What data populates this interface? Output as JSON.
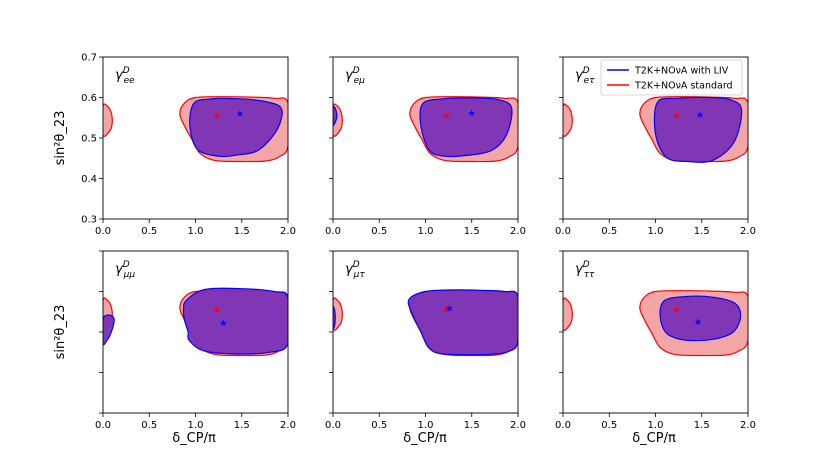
{
  "figure": {
    "xlabel": "δ_CP/π",
    "ylabel": "sin²θ_23",
    "legend_position": "top-right of upper-right panel"
  },
  "legend": [
    {
      "label": "T2K+NOνA with LIV",
      "color": "#0000ff"
    },
    {
      "label": "T2K+NOνA standard",
      "color": "#ff0000"
    }
  ],
  "chart_data": {
    "type": "area",
    "rows": 2,
    "cols": 3,
    "xlim": [
      0,
      2
    ],
    "ylim": [
      0.3,
      0.7
    ],
    "xticks": [
      "0.0",
      "0.5",
      "1.0",
      "1.5",
      "2.0"
    ],
    "yticks": [
      "0.3",
      "0.4",
      "0.5",
      "0.6",
      "0.7"
    ],
    "grid": false,
    "standard": {
      "color": "#ff0000",
      "fill": "#f4a6a6",
      "best_fit": [
        1.23,
        0.555
      ],
      "left_region": [
        [
          0.0,
          0.578
        ],
        [
          0.05,
          0.578
        ],
        [
          0.09,
          0.562
        ],
        [
          0.1,
          0.54
        ],
        [
          0.08,
          0.52
        ],
        [
          0.0,
          0.507
        ]
      ],
      "main_region": [
        [
          0.88,
          0.586
        ],
        [
          1.0,
          0.6
        ],
        [
          1.3,
          0.602
        ],
        [
          1.6,
          0.601
        ],
        [
          1.85,
          0.598
        ],
        [
          2.0,
          0.587
        ],
        [
          2.0,
          0.48
        ],
        [
          1.9,
          0.453
        ],
        [
          1.75,
          0.443
        ],
        [
          1.45,
          0.442
        ],
        [
          1.2,
          0.445
        ],
        [
          1.05,
          0.462
        ],
        [
          0.96,
          0.497
        ],
        [
          0.88,
          0.53
        ],
        [
          0.83,
          0.56
        ]
      ]
    },
    "panels": [
      {
        "label_base": "γ",
        "label_sub": "ee",
        "label_sup": "D",
        "show_yticks": true,
        "legend": false,
        "liv_best_fit": [
          1.48,
          0.56
        ],
        "liv_regions": [
          [
            [
              0.98,
              0.585
            ],
            [
              1.15,
              0.596
            ],
            [
              1.45,
              0.597
            ],
            [
              1.75,
              0.59
            ],
            [
              1.93,
              0.572
            ],
            [
              1.88,
              0.52
            ],
            [
              1.68,
              0.47
            ],
            [
              1.45,
              0.458
            ],
            [
              1.25,
              0.455
            ],
            [
              1.02,
              0.472
            ],
            [
              0.94,
              0.53
            ]
          ]
        ]
      },
      {
        "label_base": "γ",
        "label_sub": "eμ",
        "label_sup": "D",
        "show_yticks": false,
        "legend": false,
        "liv_best_fit": [
          1.5,
          0.561
        ],
        "liv_regions": [
          [
            [
              0.97,
              0.585
            ],
            [
              1.2,
              0.597
            ],
            [
              1.5,
              0.599
            ],
            [
              1.78,
              0.595
            ],
            [
              1.93,
              0.575
            ],
            [
              1.88,
              0.51
            ],
            [
              1.72,
              0.47
            ],
            [
              1.45,
              0.457
            ],
            [
              1.2,
              0.455
            ],
            [
              1.04,
              0.47
            ],
            [
              0.95,
              0.53
            ]
          ],
          [
            [
              0.0,
              0.575
            ],
            [
              0.03,
              0.57
            ],
            [
              0.04,
              0.55
            ],
            [
              0.0,
              0.532
            ]
          ]
        ]
      },
      {
        "label_base": "γ",
        "label_sub": "eτ",
        "label_sup": "D",
        "show_yticks": false,
        "legend": true,
        "liv_best_fit": [
          1.48,
          0.557
        ],
        "liv_regions": [
          [
            [
              1.02,
              0.588
            ],
            [
              1.25,
              0.598
            ],
            [
              1.55,
              0.6
            ],
            [
              1.8,
              0.595
            ],
            [
              1.93,
              0.57
            ],
            [
              1.85,
              0.49
            ],
            [
              1.62,
              0.445
            ],
            [
              1.35,
              0.442
            ],
            [
              1.12,
              0.452
            ],
            [
              1.0,
              0.51
            ]
          ]
        ]
      },
      {
        "label_base": "γ",
        "label_sub": "μμ",
        "label_sup": "D",
        "show_yticks": false,
        "legend": false,
        "liv_best_fit": [
          1.3,
          0.522
        ],
        "liv_regions": [
          [
            [
              0.9,
              0.578
            ],
            [
              1.1,
              0.605
            ],
            [
              1.5,
              0.607
            ],
            [
              1.85,
              0.6
            ],
            [
              2.0,
              0.584
            ],
            [
              2.0,
              0.472
            ],
            [
              1.8,
              0.45
            ],
            [
              1.4,
              0.446
            ],
            [
              1.08,
              0.454
            ],
            [
              0.93,
              0.48
            ],
            [
              0.92,
              0.5
            ],
            [
              0.88,
              0.53
            ],
            [
              0.87,
              0.555
            ]
          ],
          [
            [
              0.0,
              0.53
            ],
            [
              0.06,
              0.542
            ],
            [
              0.12,
              0.532
            ],
            [
              0.09,
              0.5
            ],
            [
              0.04,
              0.478
            ],
            [
              0.0,
              0.472
            ]
          ]
        ]
      },
      {
        "label_base": "γ",
        "label_sub": "μτ",
        "label_sup": "D",
        "show_yticks": false,
        "legend": false,
        "liv_best_fit": [
          1.26,
          0.558
        ],
        "liv_regions": [
          [
            [
              0.82,
              0.58
            ],
            [
              1.0,
              0.6
            ],
            [
              1.3,
              0.604
            ],
            [
              1.6,
              0.603
            ],
            [
              1.85,
              0.6
            ],
            [
              2.0,
              0.588
            ],
            [
              2.0,
              0.478
            ],
            [
              1.9,
              0.452
            ],
            [
              1.7,
              0.445
            ],
            [
              1.4,
              0.444
            ],
            [
              1.15,
              0.447
            ],
            [
              1.03,
              0.462
            ],
            [
              0.95,
              0.5
            ],
            [
              0.86,
              0.543
            ]
          ],
          [
            [
              0.0,
              0.56
            ],
            [
              0.02,
              0.55
            ],
            [
              0.02,
              0.52
            ],
            [
              0.0,
              0.51
            ]
          ]
        ]
      },
      {
        "label_base": "γ",
        "label_sub": "ττ",
        "label_sup": "D",
        "show_yticks": false,
        "legend": false,
        "liv_best_fit": [
          1.46,
          0.525
        ],
        "liv_regions": [
          [
            [
              1.1,
              0.578
            ],
            [
              1.35,
              0.588
            ],
            [
              1.62,
              0.586
            ],
            [
              1.85,
              0.572
            ],
            [
              1.92,
              0.54
            ],
            [
              1.84,
              0.5
            ],
            [
              1.62,
              0.482
            ],
            [
              1.32,
              0.48
            ],
            [
              1.12,
              0.497
            ],
            [
              1.05,
              0.54
            ]
          ]
        ]
      }
    ]
  }
}
